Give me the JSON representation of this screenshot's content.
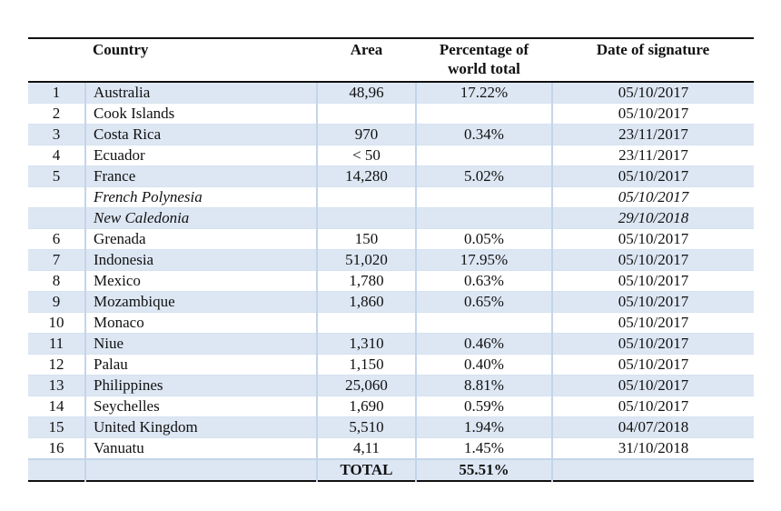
{
  "table": {
    "headers": {
      "index": "",
      "country": "Country",
      "area": "Area",
      "percentage": "Percentage of world total",
      "date": "Date of signature"
    },
    "rows": [
      {
        "idx": "1",
        "country": "Australia",
        "area": "48,96",
        "pct": "17.22%",
        "date": "05/10/2017",
        "italic": false
      },
      {
        "idx": "2",
        "country": "Cook Islands",
        "area": "",
        "pct": "",
        "date": "05/10/2017",
        "italic": false
      },
      {
        "idx": "3",
        "country": "Costa Rica",
        "area": "970",
        "pct": "0.34%",
        "date": "23/11/2017",
        "italic": false
      },
      {
        "idx": "4",
        "country": "Ecuador",
        "area": "< 50",
        "pct": "",
        "date": "23/11/2017",
        "italic": false
      },
      {
        "idx": "5",
        "country": "France",
        "area": "14,280",
        "pct": "5.02%",
        "date": "05/10/2017",
        "italic": false
      },
      {
        "idx": "",
        "country": "French Polynesia",
        "area": "",
        "pct": "",
        "date": "05/10/2017",
        "italic": true
      },
      {
        "idx": "",
        "country": "New Caledonia",
        "area": "",
        "pct": "",
        "date": "29/10/2018",
        "italic": true
      },
      {
        "idx": "6",
        "country": "Grenada",
        "area": "150",
        "pct": "0.05%",
        "date": "05/10/2017",
        "italic": false
      },
      {
        "idx": "7",
        "country": "Indonesia",
        "area": "51,020",
        "pct": "17.95%",
        "date": "05/10/2017",
        "italic": false
      },
      {
        "idx": "8",
        "country": "Mexico",
        "area": "1,780",
        "pct": "0.63%",
        "date": "05/10/2017",
        "italic": false
      },
      {
        "idx": "9",
        "country": "Mozambique",
        "area": "1,860",
        "pct": "0.65%",
        "date": "05/10/2017",
        "italic": false
      },
      {
        "idx": "10",
        "country": "Monaco",
        "area": "",
        "pct": "",
        "date": "05/10/2017",
        "italic": false
      },
      {
        "idx": "11",
        "country": "Niue",
        "area": "1,310",
        "pct": "0.46%",
        "date": "05/10/2017",
        "italic": false
      },
      {
        "idx": "12",
        "country": "Palau",
        "area": "1,150",
        "pct": "0.40%",
        "date": "05/10/2017",
        "italic": false
      },
      {
        "idx": "13",
        "country": "Philippines",
        "area": "25,060",
        "pct": "8.81%",
        "date": "05/10/2017",
        "italic": false
      },
      {
        "idx": "14",
        "country": "Seychelles",
        "area": "1,690",
        "pct": "0.59%",
        "date": "05/10/2017",
        "italic": false
      },
      {
        "idx": "15",
        "country": "United Kingdom",
        "area": "5,510",
        "pct": "1.94%",
        "date": "04/07/2018",
        "italic": false
      },
      {
        "idx": "16",
        "country": "Vanuatu",
        "area": "4,11",
        "pct": "1.45%",
        "date": "31/10/2018",
        "italic": false
      }
    ],
    "total": {
      "label": "TOTAL",
      "pct": "55.51%"
    }
  },
  "colors": {
    "row_shade": "#dde7f4",
    "cell_divider": "#c4d5ea",
    "rule": "#111111",
    "page_background": "#f3f3f3"
  }
}
